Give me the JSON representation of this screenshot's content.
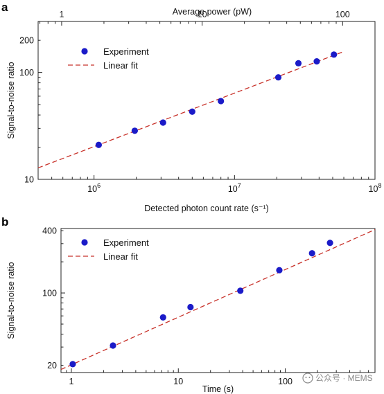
{
  "colors": {
    "marker": "#1b1bc8",
    "fit_line": "#c8322a",
    "axis": "#222222",
    "watermark": "#8a8a8a"
  },
  "watermark": {
    "text": "公众号 · MEMS",
    "icon": "wechat-icon"
  },
  "chart_data": [
    {
      "panel": "a",
      "type": "scatter",
      "xlabel": "Detected photon count rate (s⁻¹)",
      "top_xlabel": "Average power (pW)",
      "ylabel": "Signal-to-noise ratio",
      "xscale": "log",
      "yscale": "log",
      "xlim": [
        400000,
        100000000
      ],
      "ylim": [
        10,
        300
      ],
      "top_xlim": [
        0.68,
        170
      ],
      "x_ticks": [
        {
          "value": 1000000,
          "mant": "10",
          "exp": "6"
        },
        {
          "value": 10000000,
          "mant": "10",
          "exp": "7"
        },
        {
          "value": 100000000,
          "mant": "10",
          "exp": "8"
        }
      ],
      "top_ticks": [
        {
          "value": 1,
          "label": "1"
        },
        {
          "value": 10,
          "label": "10"
        },
        {
          "value": 100,
          "label": "100"
        }
      ],
      "y_ticks": [
        {
          "value": 10,
          "label": "10"
        },
        {
          "value": 100,
          "label": "100"
        },
        {
          "value": 200,
          "label": "200"
        }
      ],
      "legend": {
        "position": "top-left",
        "entries": [
          "Experiment",
          "Linear fit"
        ]
      },
      "series": [
        {
          "name": "Experiment",
          "kind": "points",
          "x": [
            1080000,
            1950000,
            3100000,
            5000000,
            8000000,
            20500000,
            28500000,
            38500000,
            51000000
          ],
          "y": [
            21,
            28.5,
            34,
            43,
            54,
            90,
            122,
            127,
            147
          ]
        },
        {
          "name": "Linear fit",
          "kind": "line",
          "x": [
            400000,
            60000000
          ],
          "y": [
            12.8,
            157
          ]
        }
      ]
    },
    {
      "panel": "b",
      "type": "scatter",
      "xlabel": "Time (s)",
      "ylabel": "Signal-to-noise ratio",
      "xscale": "log",
      "yscale": "log",
      "xlim": [
        0.8,
        690
      ],
      "ylim": [
        17,
        420
      ],
      "x_ticks": [
        {
          "value": 1,
          "label": "1"
        },
        {
          "value": 10,
          "label": "10"
        },
        {
          "value": 100,
          "label": "100"
        }
      ],
      "y_ticks": [
        {
          "value": 20,
          "label": "20"
        },
        {
          "value": 100,
          "label": "100"
        },
        {
          "value": 400,
          "label": "400"
        }
      ],
      "legend": {
        "position": "top-left",
        "entries": [
          "Experiment",
          "Linear fit"
        ]
      },
      "series": [
        {
          "name": "Experiment",
          "kind": "points",
          "x": [
            1.03,
            2.45,
            7.2,
            13,
            38,
            88,
            178,
            262
          ],
          "y": [
            20.5,
            31,
            58,
            73,
            105,
            166,
            242,
            305
          ]
        },
        {
          "name": "Linear fit",
          "kind": "line",
          "x": [
            0.8,
            690
          ],
          "y": [
            18.2,
            410
          ]
        }
      ]
    }
  ]
}
